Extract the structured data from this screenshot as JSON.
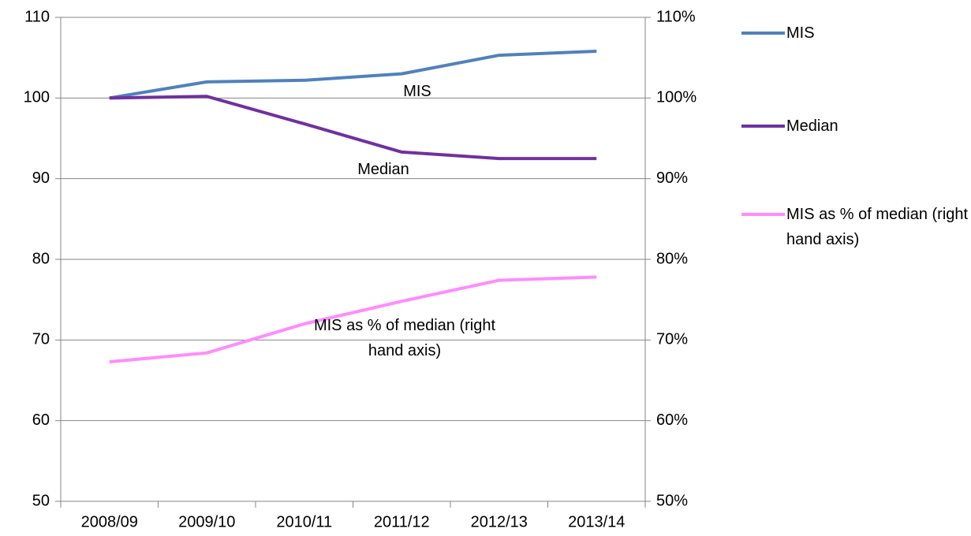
{
  "chart_data": {
    "type": "line",
    "categories": [
      "2008/09",
      "2009/10",
      "2010/11",
      "2011/12",
      "2012/13",
      "2013/14"
    ],
    "series": [
      {
        "name": "MIS",
        "color": "#4f81bd",
        "values": [
          100,
          102.0,
          102.2,
          103.0,
          105.3,
          105.8
        ]
      },
      {
        "name": "Median",
        "color": "#7030a0",
        "values": [
          100,
          100.2,
          96.8,
          93.3,
          92.5,
          92.5
        ]
      },
      {
        "name": "MIS as % of median (right hand axis)",
        "color": "#ff8cff",
        "axis": "y2",
        "values": [
          67.3,
          68.4,
          72.0,
          74.8,
          77.4,
          77.8
        ]
      }
    ],
    "ylim": [
      50,
      110
    ],
    "yticks": [
      50,
      60,
      70,
      80,
      90,
      100,
      110
    ],
    "y2lim": [
      50,
      110
    ],
    "y2ticks": [
      {
        "value": 50,
        "label": "50%"
      },
      {
        "value": 60,
        "label": "60%"
      },
      {
        "value": 70,
        "label": "70%"
      },
      {
        "value": 80,
        "label": "80%"
      },
      {
        "value": 90,
        "label": "90%"
      },
      {
        "value": 100,
        "label": "100%"
      },
      {
        "value": 110,
        "label": "110%"
      }
    ],
    "grid": true,
    "legend": "right"
  }
}
